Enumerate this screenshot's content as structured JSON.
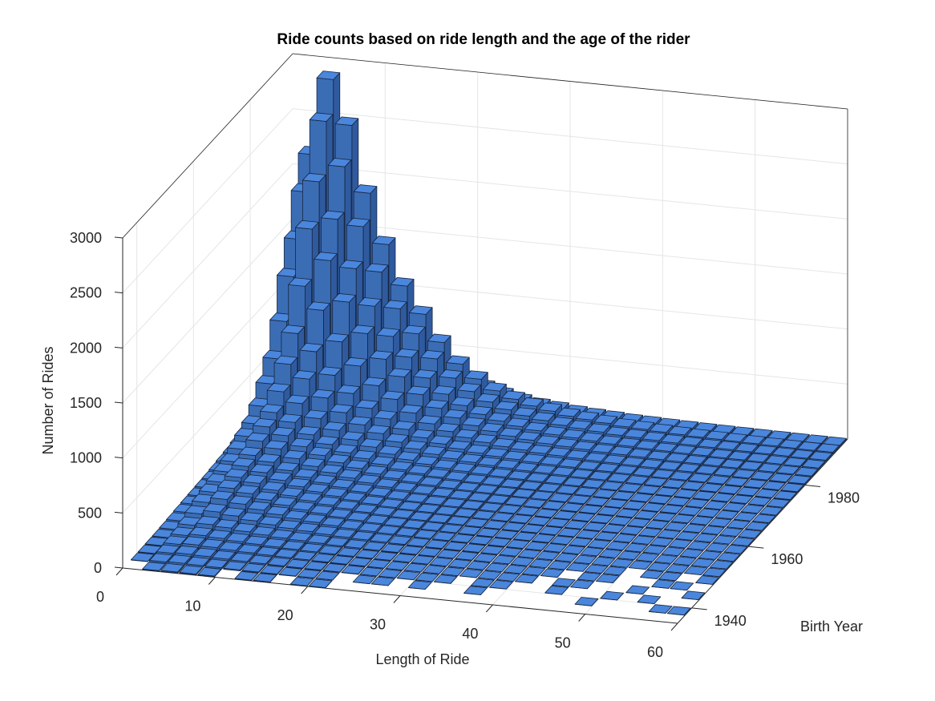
{
  "chart_data": {
    "type": "bar3d",
    "title": "Ride counts based on ride length and the age of the rider",
    "xlabel": "Length of Ride",
    "ylabel": "Birth Year",
    "zlabel": "Number of Rides",
    "xlim": [
      0,
      60
    ],
    "ylim": [
      1935,
      1995
    ],
    "zlim": [
      0,
      3000
    ],
    "x_ticks": [
      0,
      10,
      20,
      30,
      40,
      50,
      60
    ],
    "y_ticks": [
      1940,
      1960,
      1980
    ],
    "z_ticks": [
      0,
      500,
      1000,
      1500,
      2000,
      2500,
      3000
    ],
    "grid": true,
    "x_bin_width": 2,
    "y_bin_width": 2.5,
    "x_bin_start": 0,
    "y_bin_start": 1935,
    "colors": {
      "top": "#4a86dc",
      "front": "#3b6db5",
      "side": "#2f5a9e",
      "edge": "#17263f",
      "grid": "#e5e5e5",
      "axis": "#262626"
    },
    "counts_by_birth_year_bin": [
      [
        0,
        5,
        9,
        8,
        6,
        0,
        3,
        3,
        0,
        1,
        1,
        0,
        0,
        0,
        0,
        0,
        0,
        0,
        0,
        0,
        0,
        0,
        0,
        0,
        0,
        0,
        0,
        0,
        0,
        0
      ],
      [
        3,
        14,
        18,
        15,
        12,
        9,
        7,
        5,
        4,
        3,
        2,
        0,
        1,
        1,
        0,
        1,
        0,
        0,
        1,
        0,
        0,
        0,
        0,
        0,
        1,
        0,
        0,
        0,
        1,
        1
      ],
      [
        5,
        23,
        30,
        26,
        20,
        15,
        11,
        9,
        7,
        5,
        4,
        3,
        2,
        2,
        1,
        1,
        1,
        0,
        1,
        1,
        0,
        0,
        1,
        0,
        0,
        1,
        0,
        1,
        0,
        0
      ],
      [
        7,
        34,
        45,
        38,
        29,
        23,
        17,
        14,
        10,
        7,
        5,
        4,
        3,
        2,
        2,
        2,
        1,
        1,
        1,
        1,
        1,
        0,
        1,
        1,
        0,
        0,
        1,
        0,
        0,
        1
      ],
      [
        9,
        45,
        60,
        51,
        39,
        30,
        23,
        18,
        13,
        10,
        7,
        5,
        4,
        3,
        3,
        2,
        2,
        2,
        1,
        1,
        1,
        1,
        0,
        1,
        1,
        0,
        0,
        1,
        1,
        0
      ],
      [
        14,
        68,
        90,
        77,
        59,
        45,
        34,
        27,
        20,
        14,
        11,
        8,
        6,
        5,
        4,
        3,
        3,
        2,
        2,
        2,
        1,
        1,
        1,
        1,
        1,
        0,
        1,
        1,
        0,
        1
      ],
      [
        20,
        101,
        135,
        115,
        88,
        68,
        51,
        41,
        30,
        22,
        16,
        12,
        9,
        7,
        6,
        5,
        4,
        3,
        3,
        2,
        2,
        2,
        1,
        1,
        1,
        1,
        1,
        1,
        1,
        1
      ],
      [
        27,
        135,
        180,
        153,
        117,
        90,
        68,
        54,
        40,
        29,
        22,
        16,
        13,
        10,
        8,
        6,
        5,
        5,
        4,
        3,
        3,
        2,
        2,
        2,
        2,
        1,
        1,
        1,
        1,
        1
      ],
      [
        32,
        158,
        210,
        179,
        137,
        105,
        80,
        63,
        46,
        34,
        25,
        19,
        15,
        12,
        9,
        7,
        6,
        5,
        4,
        4,
        3,
        3,
        2,
        2,
        2,
        2,
        1,
        1,
        1,
        1
      ],
      [
        36,
        180,
        240,
        204,
        156,
        120,
        91,
        72,
        53,
        38,
        29,
        22,
        17,
        13,
        11,
        8,
        7,
        6,
        5,
        4,
        4,
        3,
        3,
        2,
        2,
        2,
        2,
        1,
        1,
        1
      ],
      [
        41,
        203,
        270,
        230,
        176,
        135,
        103,
        81,
        59,
        43,
        32,
        24,
        19,
        15,
        12,
        9,
        8,
        7,
        5,
        5,
        4,
        4,
        3,
        3,
        2,
        2,
        2,
        2,
        1,
        1
      ],
      [
        45,
        225,
        300,
        255,
        195,
        150,
        114,
        90,
        66,
        48,
        36,
        27,
        21,
        17,
        14,
        11,
        9,
        8,
        6,
        5,
        5,
        4,
        3,
        3,
        3,
        2,
        2,
        2,
        2,
        2
      ],
      [
        54,
        270,
        360,
        306,
        234,
        180,
        137,
        108,
        79,
        58,
        43,
        32,
        25,
        20,
        16,
        13,
        11,
        9,
        7,
        6,
        5,
        5,
        4,
        4,
        3,
        3,
        3,
        2,
        2,
        2
      ],
      [
        63,
        315,
        420,
        357,
        273,
        210,
        160,
        126,
        92,
        67,
        50,
        38,
        29,
        23,
        19,
        15,
        13,
        11,
        8,
        8,
        6,
        5,
        5,
        4,
        4,
        3,
        3,
        3,
        2,
        2
      ],
      [
        72,
        360,
        480,
        408,
        312,
        240,
        182,
        144,
        106,
        77,
        58,
        43,
        34,
        26,
        22,
        17,
        14,
        12,
        10,
        9,
        7,
        6,
        5,
        5,
        4,
        4,
        3,
        3,
        2,
        2
      ],
      [
        90,
        450,
        600,
        510,
        390,
        300,
        228,
        180,
        132,
        96,
        72,
        54,
        42,
        33,
        27,
        21,
        18,
        15,
        12,
        11,
        9,
        8,
        7,
        6,
        5,
        5,
        4,
        4,
        3,
        3
      ],
      [
        117,
        585,
        780,
        663,
        507,
        390,
        296,
        234,
        172,
        125,
        94,
        70,
        55,
        43,
        35,
        27,
        23,
        20,
        16,
        14,
        12,
        10,
        9,
        8,
        7,
        6,
        5,
        5,
        4,
        4
      ],
      [
        149,
        743,
        990,
        842,
        644,
        495,
        376,
        297,
        218,
        158,
        119,
        89,
        69,
        54,
        45,
        35,
        30,
        25,
        20,
        18,
        15,
        13,
        11,
        10,
        9,
        8,
        7,
        6,
        5,
        5
      ],
      [
        203,
        1013,
        1350,
        1148,
        878,
        675,
        513,
        405,
        297,
        216,
        162,
        122,
        95,
        74,
        61,
        47,
        41,
        34,
        27,
        24,
        20,
        18,
        15,
        14,
        12,
        11,
        9,
        8,
        7,
        7
      ],
      [
        270,
        1350,
        1800,
        1530,
        1170,
        900,
        684,
        540,
        396,
        288,
        216,
        162,
        126,
        99,
        81,
        63,
        54,
        45,
        36,
        32,
        27,
        23,
        20,
        18,
        16,
        14,
        13,
        11,
        9,
        9
      ],
      [
        324,
        1620,
        2160,
        1836,
        1404,
        1080,
        821,
        648,
        475,
        346,
        259,
        194,
        151,
        119,
        97,
        76,
        65,
        54,
        43,
        39,
        32,
        28,
        24,
        22,
        19,
        17,
        15,
        13,
        11,
        11
      ],
      [
        396,
        1980,
        2640,
        2244,
        1716,
        1320,
        1003,
        792,
        581,
        422,
        317,
        238,
        185,
        145,
        119,
        92,
        79,
        66,
        53,
        48,
        40,
        34,
        29,
        26,
        24,
        21,
        18,
        16,
        13,
        13
      ],
      [
        450,
        2250,
        2950,
        2550,
        1950,
        1500,
        1140,
        900,
        660,
        480,
        360,
        270,
        210,
        165,
        135,
        105,
        90,
        75,
        60,
        54,
        45,
        39,
        33,
        30,
        27,
        24,
        21,
        18,
        15,
        15
      ],
      [
        260,
        1300,
        1750,
        1500,
        1150,
        880,
        670,
        530,
        390,
        280,
        210,
        160,
        120,
        95,
        80,
        62,
        52,
        44,
        35,
        31,
        26,
        22,
        19,
        17,
        15,
        13,
        12,
        10,
        9,
        8
      ]
    ]
  }
}
